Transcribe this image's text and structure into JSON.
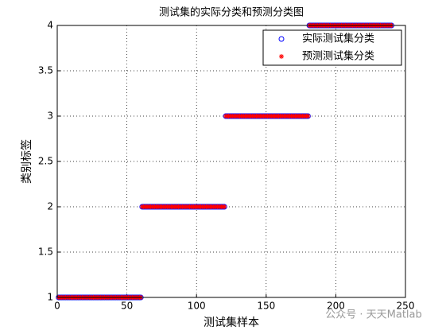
{
  "chart_data": {
    "type": "scatter",
    "title": "测试集的实际分类和预测分类图",
    "x_label": "测试集样本",
    "y_label": "类别标签",
    "watermark": "公众号 · 天天Matlab",
    "xlim": [
      0,
      250
    ],
    "ylim": [
      1,
      4
    ],
    "xticks": [
      0,
      50,
      100,
      150,
      200,
      250
    ],
    "yticks": [
      1,
      1.5,
      2,
      2.5,
      3,
      3.5,
      4
    ],
    "grid": true,
    "legend": "upper right",
    "x": [
      1,
      2,
      3,
      4,
      5,
      6,
      7,
      8,
      9,
      10,
      11,
      12,
      13,
      14,
      15,
      16,
      17,
      18,
      19,
      20,
      21,
      22,
      23,
      24,
      25,
      26,
      27,
      28,
      29,
      30,
      31,
      32,
      33,
      34,
      35,
      36,
      37,
      38,
      39,
      40,
      41,
      42,
      43,
      44,
      45,
      46,
      47,
      48,
      49,
      50,
      51,
      52,
      53,
      54,
      55,
      56,
      57,
      58,
      59,
      60,
      61,
      62,
      63,
      64,
      65,
      66,
      67,
      68,
      69,
      70,
      71,
      72,
      73,
      74,
      75,
      76,
      77,
      78,
      79,
      80,
      81,
      82,
      83,
      84,
      85,
      86,
      87,
      88,
      89,
      90,
      91,
      92,
      93,
      94,
      95,
      96,
      97,
      98,
      99,
      100,
      101,
      102,
      103,
      104,
      105,
      106,
      107,
      108,
      109,
      110,
      111,
      112,
      113,
      114,
      115,
      116,
      117,
      118,
      119,
      120,
      121,
      122,
      123,
      124,
      125,
      126,
      127,
      128,
      129,
      130,
      131,
      132,
      133,
      134,
      135,
      136,
      137,
      138,
      139,
      140,
      141,
      142,
      143,
      144,
      145,
      146,
      147,
      148,
      149,
      150,
      151,
      152,
      153,
      154,
      155,
      156,
      157,
      158,
      159,
      160,
      161,
      162,
      163,
      164,
      165,
      166,
      167,
      168,
      169,
      170,
      171,
      172,
      173,
      174,
      175,
      176,
      177,
      178,
      179,
      180,
      181,
      182,
      183,
      184,
      185,
      186,
      187,
      188,
      189,
      190,
      191,
      192,
      193,
      194,
      195,
      196,
      197,
      198,
      199,
      200,
      201,
      202,
      203,
      204,
      205,
      206,
      207,
      208,
      209,
      210,
      211,
      212,
      213,
      214,
      215,
      216,
      217,
      218,
      219,
      220,
      221,
      222,
      223,
      224,
      225,
      226,
      227,
      228,
      229,
      230,
      231,
      232,
      233,
      234,
      235,
      236,
      237,
      238,
      239,
      240
    ],
    "series": [
      {
        "name": "实际测试集分类",
        "color": "#0000ff",
        "marker": "circle",
        "values": [
          1,
          1,
          1,
          1,
          1,
          1,
          1,
          1,
          1,
          1,
          1,
          1,
          1,
          1,
          1,
          1,
          1,
          1,
          1,
          1,
          1,
          1,
          1,
          1,
          1,
          1,
          1,
          1,
          1,
          1,
          1,
          1,
          1,
          1,
          1,
          1,
          1,
          1,
          1,
          1,
          1,
          1,
          1,
          1,
          1,
          1,
          1,
          1,
          1,
          1,
          1,
          1,
          1,
          1,
          1,
          1,
          1,
          1,
          1,
          1,
          2,
          2,
          2,
          2,
          2,
          2,
          2,
          2,
          2,
          2,
          2,
          2,
          2,
          2,
          2,
          2,
          2,
          2,
          2,
          2,
          2,
          2,
          2,
          2,
          2,
          2,
          2,
          2,
          2,
          2,
          2,
          2,
          2,
          2,
          2,
          2,
          2,
          2,
          2,
          2,
          2,
          2,
          2,
          2,
          2,
          2,
          2,
          2,
          2,
          2,
          2,
          2,
          2,
          2,
          2,
          2,
          2,
          2,
          2,
          2,
          3,
          3,
          3,
          3,
          3,
          3,
          3,
          3,
          3,
          3,
          3,
          3,
          3,
          3,
          3,
          3,
          3,
          3,
          3,
          3,
          3,
          3,
          3,
          3,
          3,
          3,
          3,
          3,
          3,
          3,
          3,
          3,
          3,
          3,
          3,
          3,
          3,
          3,
          3,
          3,
          3,
          3,
          3,
          3,
          3,
          3,
          3,
          3,
          3,
          3,
          3,
          3,
          3,
          3,
          3,
          3,
          3,
          3,
          3,
          3,
          4,
          4,
          4,
          4,
          4,
          4,
          4,
          4,
          4,
          4,
          4,
          4,
          4,
          4,
          4,
          4,
          4,
          4,
          4,
          4,
          4,
          4,
          4,
          4,
          4,
          4,
          4,
          4,
          4,
          4,
          4,
          4,
          4,
          4,
          4,
          4,
          4,
          4,
          4,
          4,
          4,
          4,
          4,
          4,
          4,
          4,
          4,
          4,
          4,
          4,
          4,
          4,
          4,
          4,
          4,
          4,
          4,
          4,
          4,
          4
        ]
      },
      {
        "name": "预测测试集分类",
        "color": "#ff0000",
        "marker": "asterisk",
        "values": [
          1,
          1,
          1,
          1,
          1,
          1,
          1,
          1,
          1,
          1,
          1,
          1,
          1,
          1,
          1,
          1,
          1,
          1,
          1,
          1,
          1,
          1,
          1,
          1,
          1,
          1,
          1,
          1,
          1,
          1,
          1,
          1,
          1,
          1,
          1,
          1,
          1,
          1,
          1,
          1,
          1,
          1,
          1,
          1,
          1,
          1,
          1,
          1,
          1,
          1,
          1,
          1,
          1,
          1,
          1,
          1,
          1,
          1,
          1,
          1,
          2,
          2,
          2,
          2,
          2,
          2,
          2,
          2,
          2,
          2,
          2,
          2,
          2,
          2,
          2,
          2,
          2,
          2,
          2,
          2,
          2,
          2,
          2,
          2,
          2,
          2,
          2,
          2,
          2,
          2,
          2,
          2,
          2,
          2,
          2,
          2,
          2,
          2,
          2,
          2,
          2,
          2,
          2,
          2,
          2,
          2,
          2,
          2,
          2,
          2,
          2,
          2,
          2,
          2,
          2,
          2,
          2,
          2,
          2,
          2,
          3,
          3,
          3,
          3,
          3,
          3,
          3,
          3,
          3,
          3,
          3,
          3,
          3,
          3,
          3,
          3,
          3,
          3,
          3,
          3,
          3,
          3,
          3,
          3,
          3,
          3,
          3,
          3,
          3,
          3,
          3,
          3,
          3,
          3,
          3,
          3,
          3,
          3,
          3,
          3,
          3,
          3,
          3,
          3,
          3,
          3,
          3,
          3,
          3,
          3,
          3,
          3,
          3,
          3,
          3,
          3,
          3,
          3,
          3,
          3,
          4,
          4,
          4,
          4,
          4,
          4,
          4,
          4,
          4,
          4,
          4,
          4,
          4,
          4,
          4,
          4,
          4,
          4,
          4,
          4,
          4,
          4,
          4,
          4,
          4,
          4,
          4,
          4,
          4,
          4,
          4,
          4,
          4,
          4,
          4,
          4,
          4,
          4,
          4,
          4,
          4,
          4,
          4,
          4,
          4,
          4,
          4,
          4,
          4,
          4,
          4,
          4,
          4,
          4,
          4,
          4,
          4,
          4,
          4,
          4
        ]
      }
    ]
  }
}
